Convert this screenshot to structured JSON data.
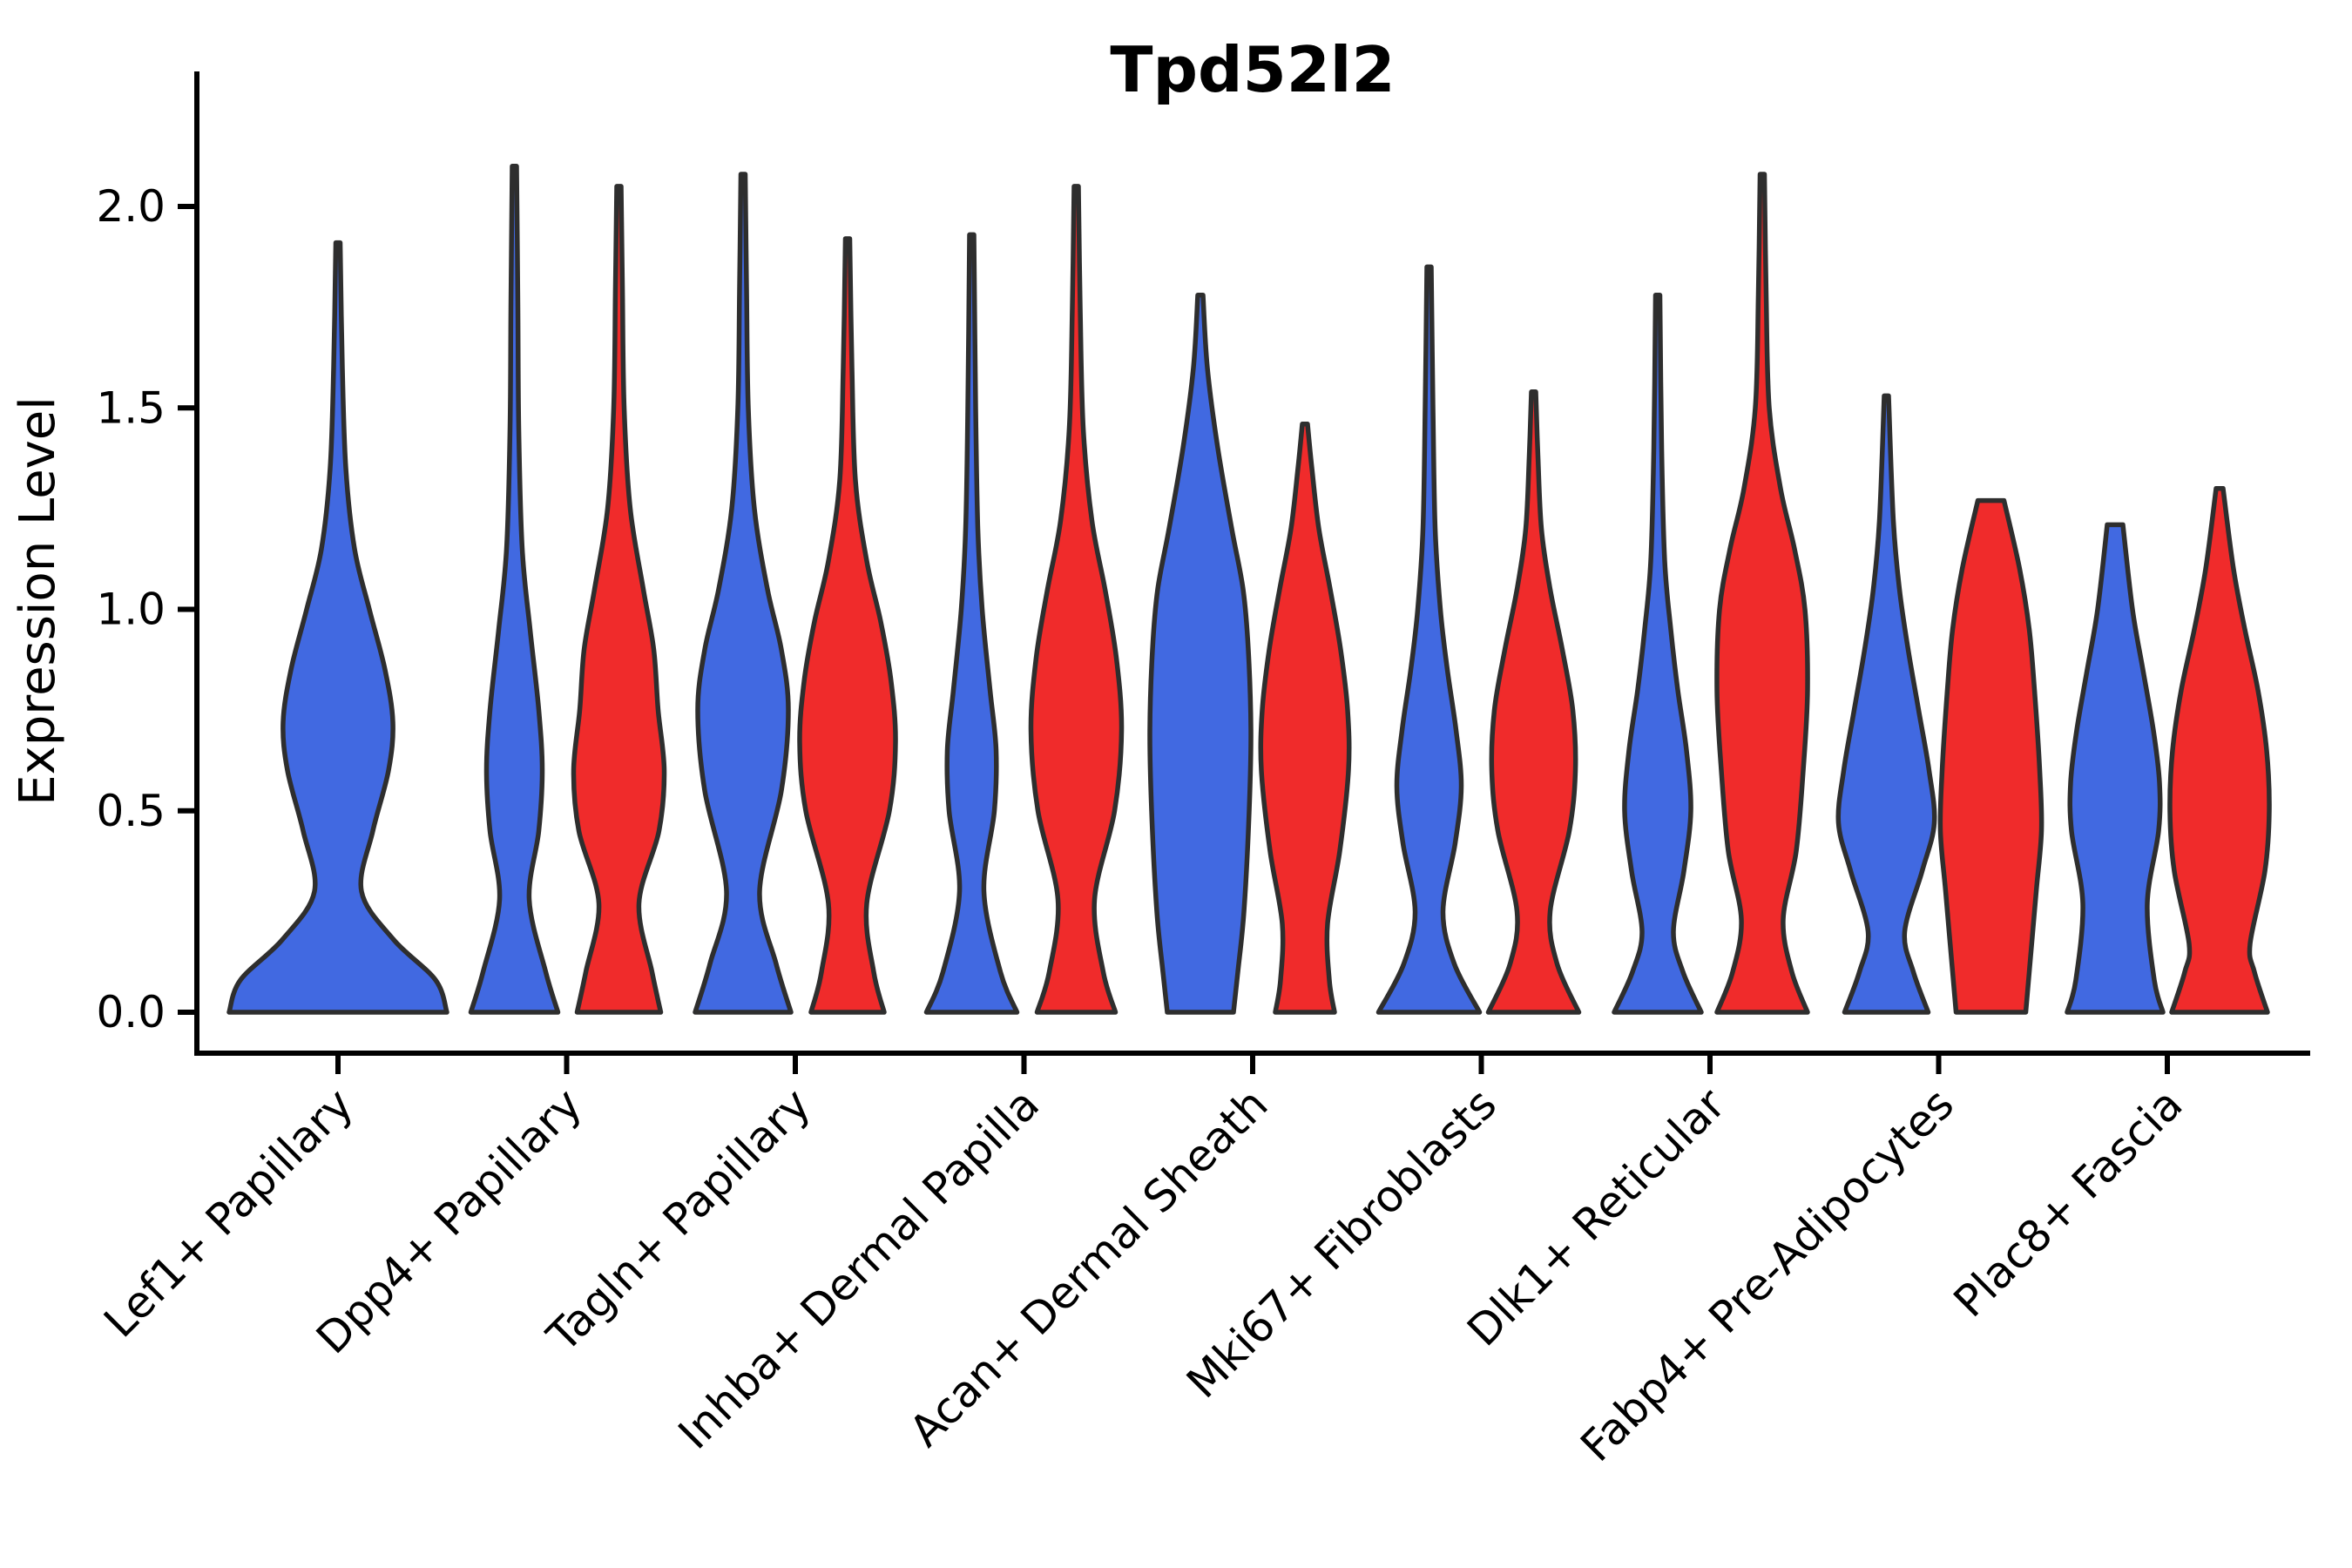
{
  "title": "Tpd52l2",
  "ylabel": "Expression Level",
  "colors": {
    "blue": "#4169E1",
    "red": "#F02B2B",
    "outline": "#2E2E2E",
    "axis": "#000000"
  },
  "chart_data": {
    "type": "violin",
    "title": "Tpd52l2",
    "xlabel": "",
    "ylabel": "Expression Level",
    "ylim": [
      0,
      2.15
    ],
    "yticks": [
      "0.0",
      "0.5",
      "1.0",
      "1.5",
      "2.0"
    ],
    "ytick_values": [
      0.0,
      0.5,
      1.0,
      1.5,
      2.0
    ],
    "grid": false,
    "legend": "none",
    "hues": [
      "blue",
      "red"
    ],
    "categories": [
      "Lef1+ Papillary",
      "Dpp4+ Papillary",
      "Tagln+ Papillary",
      "Inhba+ Dermal Papilla",
      "Acan+ Dermal Sheath",
      "Mki67+ Fibroblasts",
      "Dlk1+ Reticular",
      "Fabp4+ Pre-Adipocytes",
      "Plac8+ Fascia"
    ],
    "violins": [
      {
        "category": "Lef1+ Papillary",
        "hue": "blue",
        "max_expression": 1.91,
        "flat_top": false,
        "profile": [
          [
            0,
            125
          ],
          [
            0.08,
            112
          ],
          [
            0.18,
            64
          ],
          [
            0.3,
            27
          ],
          [
            0.45,
            40
          ],
          [
            0.6,
            58
          ],
          [
            0.72,
            63
          ],
          [
            0.85,
            54
          ],
          [
            1.0,
            36
          ],
          [
            1.15,
            19
          ],
          [
            1.35,
            9
          ],
          [
            1.6,
            5
          ],
          [
            1.91,
            2.5
          ]
        ]
      },
      {
        "category": "Dpp4+ Papillary",
        "hue": "blue",
        "max_expression": 2.1,
        "flat_top": false,
        "profile": [
          [
            0,
            50
          ],
          [
            0.1,
            36
          ],
          [
            0.28,
            17
          ],
          [
            0.45,
            28
          ],
          [
            0.6,
            32
          ],
          [
            0.75,
            28
          ],
          [
            0.95,
            18
          ],
          [
            1.15,
            9
          ],
          [
            1.45,
            5
          ],
          [
            1.75,
            4
          ],
          [
            2.1,
            2.5
          ]
        ]
      },
      {
        "category": "Dpp4+ Papillary",
        "hue": "red",
        "max_expression": 2.05,
        "flat_top": false,
        "profile": [
          [
            0,
            48
          ],
          [
            0.1,
            38
          ],
          [
            0.27,
            23
          ],
          [
            0.45,
            46
          ],
          [
            0.6,
            52
          ],
          [
            0.75,
            45
          ],
          [
            0.9,
            40
          ],
          [
            1.05,
            28
          ],
          [
            1.25,
            13
          ],
          [
            1.5,
            6
          ],
          [
            1.8,
            4
          ],
          [
            2.05,
            2.5
          ]
        ]
      },
      {
        "category": "Tagln+ Papillary",
        "hue": "blue",
        "max_expression": 2.08,
        "flat_top": false,
        "profile": [
          [
            0,
            55
          ],
          [
            0.12,
            38
          ],
          [
            0.3,
            19
          ],
          [
            0.55,
            44
          ],
          [
            0.75,
            52
          ],
          [
            0.9,
            44
          ],
          [
            1.05,
            28
          ],
          [
            1.25,
            13
          ],
          [
            1.5,
            6
          ],
          [
            1.8,
            4
          ],
          [
            2.08,
            2.5
          ]
        ]
      },
      {
        "category": "Tagln+ Papillary",
        "hue": "red",
        "max_expression": 1.92,
        "flat_top": false,
        "profile": [
          [
            0,
            42
          ],
          [
            0.1,
            30
          ],
          [
            0.27,
            22
          ],
          [
            0.5,
            48
          ],
          [
            0.67,
            55
          ],
          [
            0.82,
            50
          ],
          [
            0.97,
            38
          ],
          [
            1.12,
            22
          ],
          [
            1.32,
            9
          ],
          [
            1.6,
            5
          ],
          [
            1.92,
            2.5
          ]
        ]
      },
      {
        "category": "Inhba+ Dermal Papilla",
        "hue": "blue",
        "max_expression": 1.93,
        "flat_top": false,
        "profile": [
          [
            0,
            52
          ],
          [
            0.1,
            33
          ],
          [
            0.3,
            14
          ],
          [
            0.5,
            26
          ],
          [
            0.65,
            28
          ],
          [
            0.8,
            21
          ],
          [
            1.0,
            12
          ],
          [
            1.2,
            7
          ],
          [
            1.5,
            4.5
          ],
          [
            1.93,
            2.5
          ]
        ]
      },
      {
        "category": "Inhba+ Dermal Papilla",
        "hue": "red",
        "max_expression": 2.05,
        "flat_top": false,
        "profile": [
          [
            0,
            45
          ],
          [
            0.1,
            31
          ],
          [
            0.28,
            21
          ],
          [
            0.5,
            44
          ],
          [
            0.7,
            52
          ],
          [
            0.88,
            46
          ],
          [
            1.05,
            33
          ],
          [
            1.22,
            18
          ],
          [
            1.45,
            8
          ],
          [
            1.75,
            4.5
          ],
          [
            2.05,
            2.5
          ]
        ]
      },
      {
        "category": "Acan+ Dermal Sheath",
        "hue": "blue",
        "max_expression": 1.78,
        "flat_top": false,
        "profile": [
          [
            0,
            38
          ],
          [
            0.1,
            43
          ],
          [
            0.25,
            50
          ],
          [
            0.5,
            56
          ],
          [
            0.7,
            58
          ],
          [
            0.9,
            55
          ],
          [
            1.05,
            49
          ],
          [
            1.2,
            36
          ],
          [
            1.4,
            20
          ],
          [
            1.6,
            8
          ],
          [
            1.78,
            3
          ]
        ]
      },
      {
        "category": "Acan+ Dermal Sheath",
        "hue": "red",
        "max_expression": 1.46,
        "flat_top": false,
        "profile": [
          [
            0,
            34
          ],
          [
            0.08,
            28
          ],
          [
            0.22,
            26
          ],
          [
            0.4,
            40
          ],
          [
            0.6,
            50
          ],
          [
            0.75,
            49
          ],
          [
            0.9,
            41
          ],
          [
            1.05,
            29
          ],
          [
            1.2,
            16
          ],
          [
            1.35,
            8
          ],
          [
            1.46,
            3
          ]
        ]
      },
      {
        "category": "Mki67+ Fibroblasts",
        "hue": "blue",
        "max_expression": 1.85,
        "flat_top": false,
        "profile": [
          [
            0,
            58
          ],
          [
            0.12,
            29
          ],
          [
            0.25,
            16
          ],
          [
            0.42,
            30
          ],
          [
            0.56,
            37
          ],
          [
            0.7,
            31
          ],
          [
            0.85,
            21
          ],
          [
            1.0,
            13
          ],
          [
            1.2,
            7
          ],
          [
            1.5,
            4.5
          ],
          [
            1.85,
            2.5
          ]
        ]
      },
      {
        "category": "Mki67+ Fibroblasts",
        "hue": "red",
        "max_expression": 1.54,
        "flat_top": false,
        "profile": [
          [
            0,
            52
          ],
          [
            0.12,
            27
          ],
          [
            0.25,
            19
          ],
          [
            0.45,
            41
          ],
          [
            0.6,
            48
          ],
          [
            0.75,
            45
          ],
          [
            0.9,
            33
          ],
          [
            1.05,
            19
          ],
          [
            1.2,
            9
          ],
          [
            1.38,
            5
          ],
          [
            1.54,
            2.5
          ]
        ]
      },
      {
        "category": "Dlk1+ Reticular",
        "hue": "blue",
        "max_expression": 1.78,
        "flat_top": false,
        "profile": [
          [
            0,
            50
          ],
          [
            0.1,
            29
          ],
          [
            0.2,
            18
          ],
          [
            0.35,
            30
          ],
          [
            0.5,
            38
          ],
          [
            0.65,
            33
          ],
          [
            0.8,
            23
          ],
          [
            0.95,
            15
          ],
          [
            1.12,
            8
          ],
          [
            1.4,
            4.5
          ],
          [
            1.78,
            2.5
          ]
        ]
      },
      {
        "category": "Dlk1+ Reticular",
        "hue": "red",
        "max_expression": 2.08,
        "flat_top": false,
        "profile": [
          [
            0,
            52
          ],
          [
            0.1,
            34
          ],
          [
            0.23,
            24
          ],
          [
            0.4,
            39
          ],
          [
            0.6,
            47
          ],
          [
            0.8,
            52
          ],
          [
            1.0,
            49
          ],
          [
            1.15,
            37
          ],
          [
            1.3,
            21
          ],
          [
            1.5,
            8
          ],
          [
            1.78,
            4.5
          ],
          [
            2.08,
            2.5
          ]
        ]
      },
      {
        "category": "Fabp4+ Pre-Adipocytes",
        "hue": "blue",
        "max_expression": 1.53,
        "flat_top": false,
        "profile": [
          [
            0,
            48
          ],
          [
            0.1,
            31
          ],
          [
            0.2,
            21
          ],
          [
            0.35,
            41
          ],
          [
            0.47,
            55
          ],
          [
            0.6,
            49
          ],
          [
            0.75,
            37
          ],
          [
            0.9,
            25
          ],
          [
            1.05,
            15
          ],
          [
            1.22,
            8
          ],
          [
            1.53,
            2.5
          ]
        ]
      },
      {
        "category": "Fabp4+ Pre-Adipocytes",
        "hue": "red",
        "max_expression": 1.27,
        "flat_top": true,
        "profile": [
          [
            0,
            40
          ],
          [
            0.1,
            44
          ],
          [
            0.3,
            52
          ],
          [
            0.45,
            58
          ],
          [
            0.6,
            56
          ],
          [
            0.8,
            50
          ],
          [
            0.95,
            44
          ],
          [
            1.1,
            33
          ],
          [
            1.27,
            15
          ]
        ]
      },
      {
        "category": "Plac8+ Fascia",
        "hue": "blue",
        "max_expression": 1.21,
        "flat_top": true,
        "profile": [
          [
            0,
            55
          ],
          [
            0.08,
            45
          ],
          [
            0.27,
            37
          ],
          [
            0.45,
            50
          ],
          [
            0.57,
            51
          ],
          [
            0.7,
            44
          ],
          [
            0.85,
            32
          ],
          [
            1.0,
            20
          ],
          [
            1.21,
            9
          ]
        ]
      },
      {
        "category": "Plac8+ Fascia",
        "hue": "red",
        "max_expression": 1.3,
        "flat_top": false,
        "profile": [
          [
            0,
            55
          ],
          [
            0.1,
            40
          ],
          [
            0.17,
            35
          ],
          [
            0.35,
            52
          ],
          [
            0.5,
            57
          ],
          [
            0.65,
            54
          ],
          [
            0.8,
            44
          ],
          [
            0.95,
            29
          ],
          [
            1.1,
            16
          ],
          [
            1.3,
            4
          ]
        ]
      }
    ]
  }
}
